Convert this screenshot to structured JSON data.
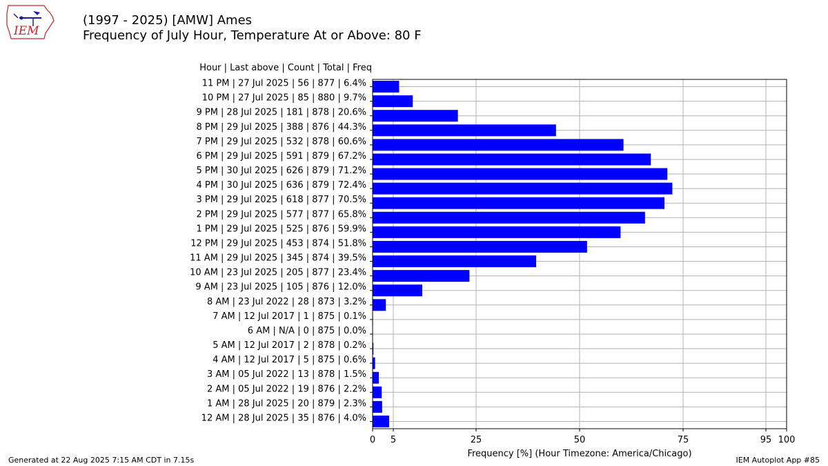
{
  "logo": {
    "text": "IEM",
    "color": "#cc2222"
  },
  "title": {
    "line1": "(1997 - 2025) [AMW] Ames",
    "line2": "Frequency of July Hour, Temperature At or Above: 80 F"
  },
  "table_header": "Hour | Last above | Count | Total | Freq",
  "footer": {
    "left": "Generated at 22 Aug 2025 7:15 AM CDT in 7.15s",
    "right": "IEM Autoplot App #85"
  },
  "colors": {
    "bar": "#0000ff",
    "grid": "#b0b0b0",
    "axis": "#000000"
  },
  "chart_data": {
    "type": "bar",
    "orientation": "horizontal",
    "xlabel": "Frequency [%] (Hour Timezone: America/Chicago)",
    "xlim": [
      0,
      100
    ],
    "xticks": [
      0,
      5,
      25,
      50,
      75,
      95,
      100
    ],
    "grid": true,
    "rows": [
      {
        "label": "11 PM | 27 Jul 2025 | 56 | 877 | 6.4%",
        "value": 6.4
      },
      {
        "label": "10 PM | 27 Jul 2025 | 85 | 880 | 9.7%",
        "value": 9.7
      },
      {
        "label": "9 PM  | 28 Jul 2025 | 181 | 878 | 20.6%",
        "value": 20.6
      },
      {
        "label": "8 PM  | 29 Jul 2025 | 388 | 876 | 44.3%",
        "value": 44.3
      },
      {
        "label": "7 PM  | 29 Jul 2025 | 532 | 878 | 60.6%",
        "value": 60.6
      },
      {
        "label": "6 PM  | 29 Jul 2025 | 591 | 879 | 67.2%",
        "value": 67.2
      },
      {
        "label": "5 PM  | 30 Jul 2025 | 626 | 879 | 71.2%",
        "value": 71.2
      },
      {
        "label": "4 PM  | 30 Jul 2025 | 636 | 879 | 72.4%",
        "value": 72.4
      },
      {
        "label": "3 PM  | 29 Jul 2025 | 618 | 877 | 70.5%",
        "value": 70.5
      },
      {
        "label": "2 PM  | 29 Jul 2025 | 577 | 877 | 65.8%",
        "value": 65.8
      },
      {
        "label": "1 PM  | 29 Jul 2025 | 525 | 876 | 59.9%",
        "value": 59.9
      },
      {
        "label": "12 PM | 29 Jul 2025 | 453 | 874 | 51.8%",
        "value": 51.8
      },
      {
        "label": "11 AM | 29 Jul 2025 | 345 | 874 | 39.5%",
        "value": 39.5
      },
      {
        "label": "10 AM | 23 Jul 2025 | 205 | 877 | 23.4%",
        "value": 23.4
      },
      {
        "label": "9 AM  | 23 Jul 2025 | 105 | 876 | 12.0%",
        "value": 12.0
      },
      {
        "label": "8 AM  | 23 Jul 2022 | 28 | 873 | 3.2%",
        "value": 3.2
      },
      {
        "label": "7 AM  | 12 Jul 2017 | 1 | 875 | 0.1%",
        "value": 0.1
      },
      {
        "label": "6 AM  | N/A | 0 | 875 | 0.0%",
        "value": 0.0
      },
      {
        "label": "5 AM  | 12 Jul 2017 | 2 | 878 | 0.2%",
        "value": 0.2
      },
      {
        "label": "4 AM  | 12 Jul 2017 | 5 | 875 | 0.6%",
        "value": 0.6
      },
      {
        "label": "3 AM  | 05 Jul 2022 | 13 | 878 | 1.5%",
        "value": 1.5
      },
      {
        "label": "2 AM  | 05 Jul 2022 | 19 | 876 | 2.2%",
        "value": 2.2
      },
      {
        "label": "1 AM  | 28 Jul 2025 | 20 | 879 | 2.3%",
        "value": 2.3
      },
      {
        "label": "12 AM | 28 Jul 2025 | 35 | 876 | 4.0%",
        "value": 4.0
      }
    ]
  }
}
